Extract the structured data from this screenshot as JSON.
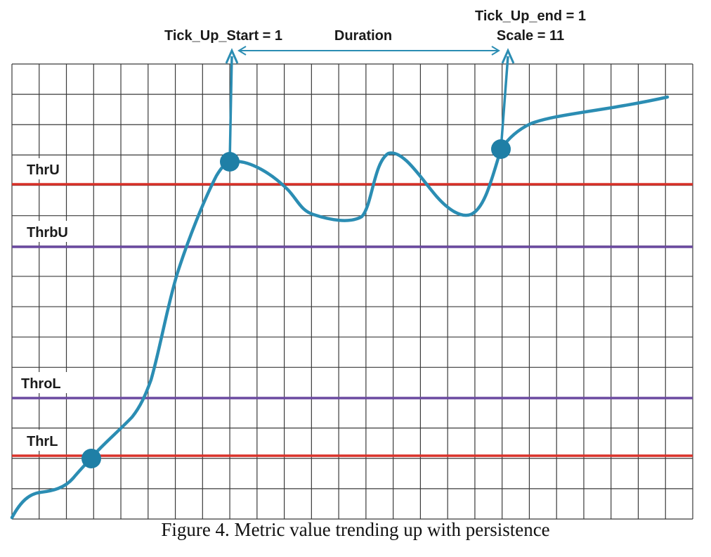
{
  "annotations": {
    "tick_up_start": "Tick_Up_Start = 1",
    "duration": "Duration",
    "tick_up_end": "Tick_Up_end = 1",
    "scale": "Scale = 11"
  },
  "thresholds": [
    {
      "label": "ThrU",
      "color": "#d9322a"
    },
    {
      "label": "ThrbU",
      "color": "#6b4aa0"
    },
    {
      "label": "ThroL",
      "color": "#6b4aa0"
    },
    {
      "label": "ThrL",
      "color": "#d9322a"
    }
  ],
  "colors": {
    "curve": "#2b8db3",
    "marker": "#1f7fa6",
    "grid": "#333333",
    "arrow": "#2b8db3"
  },
  "caption": "Figure 4. Metric value trending up with persistence"
}
